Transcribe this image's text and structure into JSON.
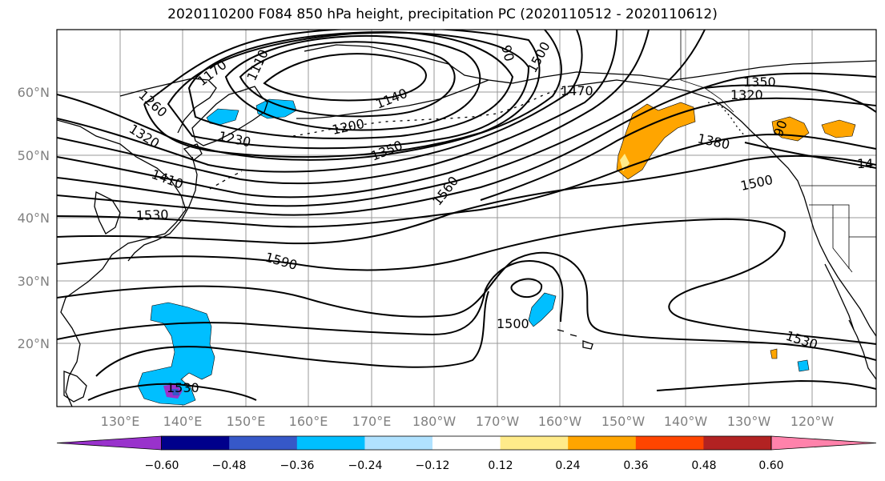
{
  "title": "2020110200 F084 850 hPa height, precipitation PC (2020110512 - 2020110612)",
  "map": {
    "lon_labels": [
      "130°E",
      "140°E",
      "150°E",
      "160°E",
      "170°E",
      "180°W",
      "170°W",
      "160°W",
      "150°W",
      "140°W",
      "130°W",
      "120°W"
    ],
    "lat_labels": [
      "60°N",
      "50°N",
      "40°N",
      "30°N",
      "20°N"
    ],
    "contour_labels": [
      "1170",
      "1110",
      "90",
      "1260",
      "1320",
      "1230",
      "1200",
      "1140",
      "1350",
      "1410",
      "1530",
      "1590",
      "1560",
      "1500",
      "1470",
      "1380",
      "1350",
      "1320",
      "1500",
      "1530",
      "1530",
      "1500",
      "14",
      "90"
    ]
  },
  "colorbar": {
    "colors": [
      "#9932cc",
      "#00008b",
      "#3658c8",
      "#00bfff",
      "#b0e2ff",
      "#ffffff",
      "#ffeb8a",
      "#ffa500",
      "#ff4500",
      "#b22222",
      "#ff82ab"
    ],
    "ticks": [
      "−0.60",
      "−0.48",
      "−0.36",
      "−0.24",
      "−0.12",
      "0.12",
      "0.24",
      "0.36",
      "0.48",
      "0.60"
    ]
  }
}
